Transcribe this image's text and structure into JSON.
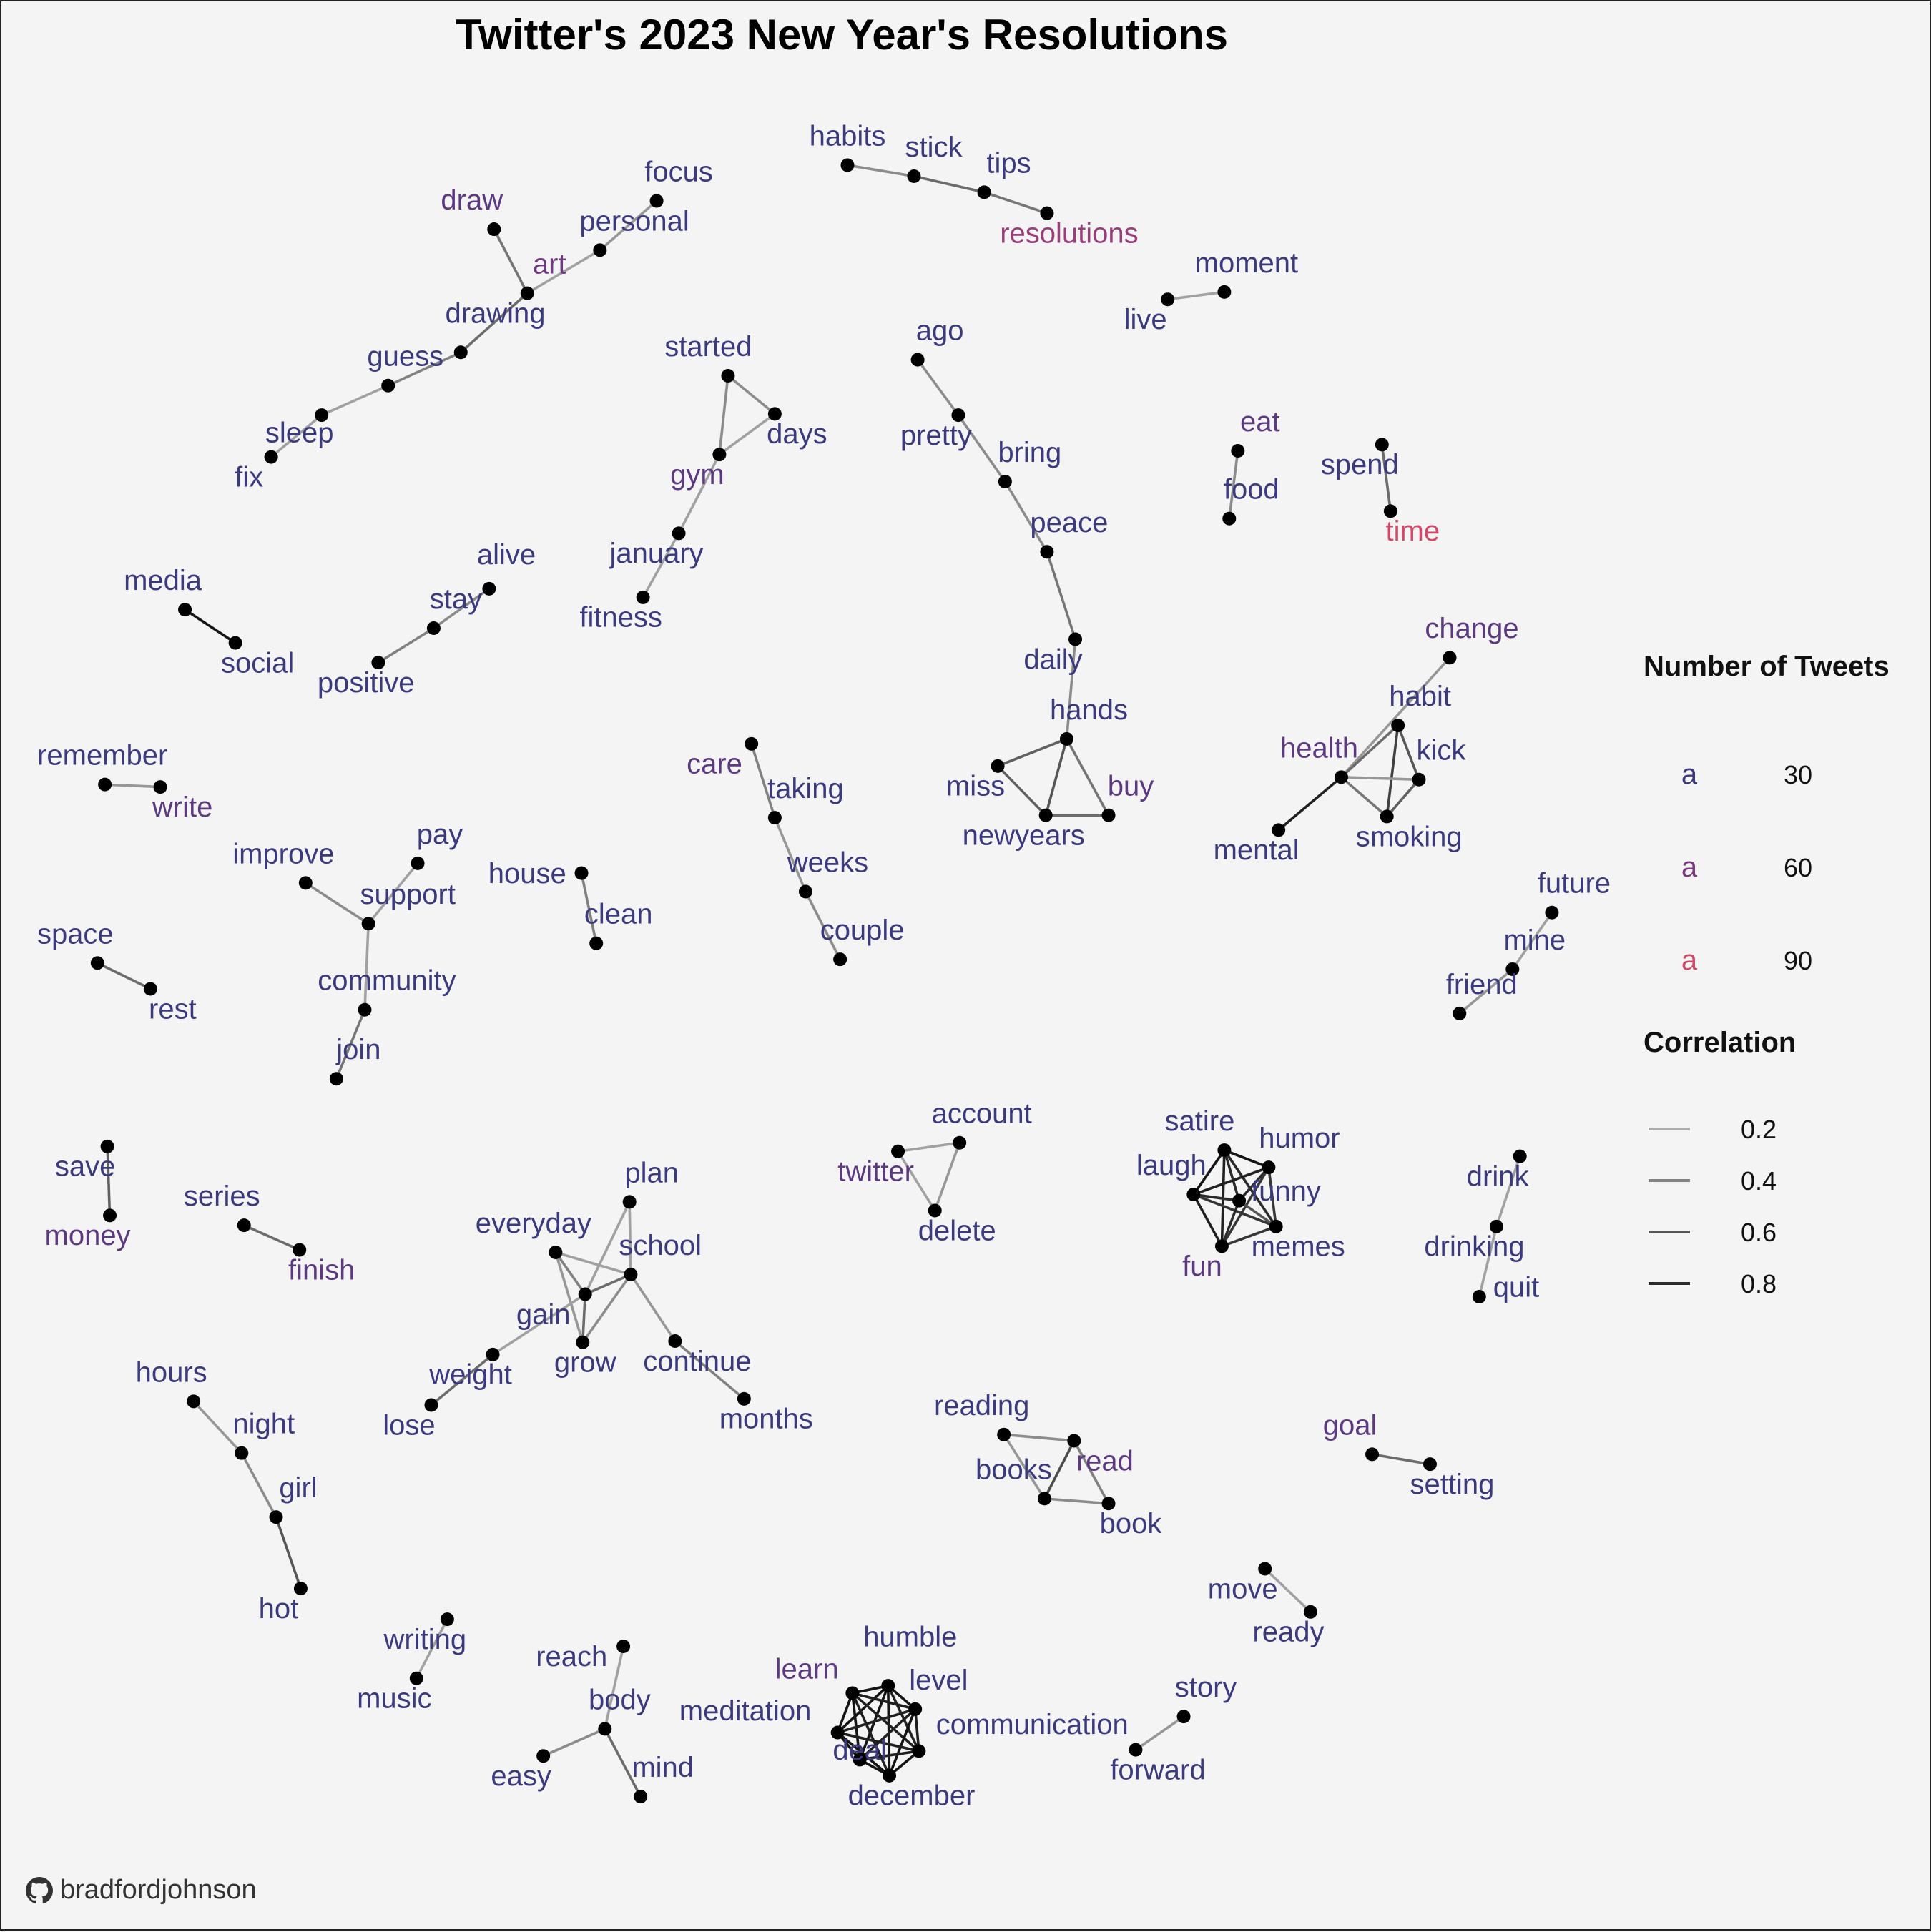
{
  "title": "Twitter's 2023 New Year's Resolutions",
  "credit": "bradfordjohnson",
  "legend": {
    "size_title": "Number of Tweets",
    "size_entries": [
      {
        "glyph": "a",
        "value": "30"
      },
      {
        "glyph": "a",
        "value": "60"
      },
      {
        "glyph": "a",
        "value": "90"
      }
    ],
    "corr_title": "Correlation",
    "corr_entries": [
      "0.2",
      "0.4",
      "0.6",
      "0.8"
    ]
  },
  "colors": {
    "background": "#f4f4f4",
    "node": "#000000",
    "label_low": "#3b3a7d",
    "label_mid": "#7a3a80",
    "label_high": "#d0486a"
  },
  "nodes": [
    {
      "w": "habits",
      "tw": 30
    },
    {
      "w": "stick",
      "tw": 30
    },
    {
      "w": "tips",
      "tw": 30
    },
    {
      "w": "resolutions",
      "tw": 70
    },
    {
      "w": "focus",
      "tw": 30
    },
    {
      "w": "personal",
      "tw": 30
    },
    {
      "w": "draw",
      "tw": 45
    },
    {
      "w": "art",
      "tw": 55
    },
    {
      "w": "drawing",
      "tw": 30
    },
    {
      "w": "guess",
      "tw": 30
    },
    {
      "w": "sleep",
      "tw": 30
    },
    {
      "w": "fix",
      "tw": 30
    },
    {
      "w": "moment",
      "tw": 30
    },
    {
      "w": "live",
      "tw": 30
    },
    {
      "w": "started",
      "tw": 30
    },
    {
      "w": "days",
      "tw": 30
    },
    {
      "w": "gym",
      "tw": 45
    },
    {
      "w": "january",
      "tw": 30
    },
    {
      "w": "fitness",
      "tw": 30
    },
    {
      "w": "ago",
      "tw": 30
    },
    {
      "w": "pretty",
      "tw": 30
    },
    {
      "w": "bring",
      "tw": 30
    },
    {
      "w": "peace",
      "tw": 30
    },
    {
      "w": "daily",
      "tw": 30
    },
    {
      "w": "hands",
      "tw": 30
    },
    {
      "w": "miss",
      "tw": 30
    },
    {
      "w": "buy",
      "tw": 45
    },
    {
      "w": "newyears",
      "tw": 30
    },
    {
      "w": "eat",
      "tw": 45
    },
    {
      "w": "food",
      "tw": 30
    },
    {
      "w": "spend",
      "tw": 30
    },
    {
      "w": "time",
      "tw": 90
    },
    {
      "w": "media",
      "tw": 30
    },
    {
      "w": "social",
      "tw": 30
    },
    {
      "w": "alive",
      "tw": 30
    },
    {
      "w": "stay",
      "tw": 30
    },
    {
      "w": "positive",
      "tw": 30
    },
    {
      "w": "change",
      "tw": 45
    },
    {
      "w": "habit",
      "tw": 30
    },
    {
      "w": "health",
      "tw": 45
    },
    {
      "w": "kick",
      "tw": 30
    },
    {
      "w": "mental",
      "tw": 30
    },
    {
      "w": "smoking",
      "tw": 30
    },
    {
      "w": "remember",
      "tw": 30
    },
    {
      "w": "write",
      "tw": 45
    },
    {
      "w": "improve",
      "tw": 30
    },
    {
      "w": "pay",
      "tw": 30
    },
    {
      "w": "support",
      "tw": 30
    },
    {
      "w": "community",
      "tw": 30
    },
    {
      "w": "join",
      "tw": 30
    },
    {
      "w": "house",
      "tw": 30
    },
    {
      "w": "clean",
      "tw": 30
    },
    {
      "w": "care",
      "tw": 45
    },
    {
      "w": "taking",
      "tw": 30
    },
    {
      "w": "weeks",
      "tw": 30
    },
    {
      "w": "couple",
      "tw": 30
    },
    {
      "w": "future",
      "tw": 30
    },
    {
      "w": "mine",
      "tw": 30
    },
    {
      "w": "friend",
      "tw": 30
    },
    {
      "w": "space",
      "tw": 30
    },
    {
      "w": "rest",
      "tw": 30
    },
    {
      "w": "account",
      "tw": 30
    },
    {
      "w": "twitter",
      "tw": 45
    },
    {
      "w": "delete",
      "tw": 30
    },
    {
      "w": "satire",
      "tw": 30
    },
    {
      "w": "humor",
      "tw": 30
    },
    {
      "w": "laugh",
      "tw": 30
    },
    {
      "w": "funny",
      "tw": 30
    },
    {
      "w": "fun",
      "tw": 45
    },
    {
      "w": "memes",
      "tw": 30
    },
    {
      "w": "drink",
      "tw": 30
    },
    {
      "w": "drinking",
      "tw": 30
    },
    {
      "w": "quit",
      "tw": 30
    },
    {
      "w": "save",
      "tw": 30
    },
    {
      "w": "money",
      "tw": 45
    },
    {
      "w": "series",
      "tw": 30
    },
    {
      "w": "finish",
      "tw": 45
    },
    {
      "w": "plan",
      "tw": 30
    },
    {
      "w": "everyday",
      "tw": 30
    },
    {
      "w": "school",
      "tw": 30
    },
    {
      "w": "gain",
      "tw": 30
    },
    {
      "w": "grow",
      "tw": 30
    },
    {
      "w": "continue",
      "tw": 30
    },
    {
      "w": "weight",
      "tw": 30
    },
    {
      "w": "lose",
      "tw": 30
    },
    {
      "w": "months",
      "tw": 30
    },
    {
      "w": "hours",
      "tw": 30
    },
    {
      "w": "night",
      "tw": 30
    },
    {
      "w": "girl",
      "tw": 30
    },
    {
      "w": "hot",
      "tw": 30
    },
    {
      "w": "reading",
      "tw": 30
    },
    {
      "w": "read",
      "tw": 45
    },
    {
      "w": "books",
      "tw": 30
    },
    {
      "w": "book",
      "tw": 30
    },
    {
      "w": "goal",
      "tw": 45
    },
    {
      "w": "setting",
      "tw": 30
    },
    {
      "w": "move",
      "tw": 30
    },
    {
      "w": "ready",
      "tw": 30
    },
    {
      "w": "writing",
      "tw": 30
    },
    {
      "w": "music",
      "tw": 30
    },
    {
      "w": "reach",
      "tw": 30
    },
    {
      "w": "body",
      "tw": 30
    },
    {
      "w": "easy",
      "tw": 30
    },
    {
      "w": "mind",
      "tw": 30
    },
    {
      "w": "humble",
      "tw": 30
    },
    {
      "w": "learn",
      "tw": 45
    },
    {
      "w": "level",
      "tw": 30
    },
    {
      "w": "meditation",
      "tw": 30
    },
    {
      "w": "communication",
      "tw": 30
    },
    {
      "w": "deal",
      "tw": 30
    },
    {
      "w": "december",
      "tw": 30
    },
    {
      "w": "story",
      "tw": 30
    },
    {
      "w": "forward",
      "tw": 30
    }
  ],
  "edges": [
    [
      "habits",
      "stick",
      0.35
    ],
    [
      "stick",
      "tips",
      0.5
    ],
    [
      "tips",
      "resolutions",
      0.45
    ],
    [
      "focus",
      "personal",
      0.3
    ],
    [
      "personal",
      "art",
      0.25
    ],
    [
      "draw",
      "art",
      0.45
    ],
    [
      "art",
      "drawing",
      0.5
    ],
    [
      "drawing",
      "guess",
      0.4
    ],
    [
      "guess",
      "sleep",
      0.25
    ],
    [
      "sleep",
      "fix",
      0.25
    ],
    [
      "live",
      "moment",
      0.25
    ],
    [
      "started",
      "days",
      0.35
    ],
    [
      "started",
      "gym",
      0.35
    ],
    [
      "days",
      "gym",
      0.25
    ],
    [
      "gym",
      "january",
      0.25
    ],
    [
      "january",
      "fitness",
      0.25
    ],
    [
      "ago",
      "pretty",
      0.35
    ],
    [
      "pretty",
      "bring",
      0.35
    ],
    [
      "bring",
      "peace",
      0.35
    ],
    [
      "peace",
      "daily",
      0.45
    ],
    [
      "daily",
      "hands",
      0.35
    ],
    [
      "hands",
      "miss",
      0.55
    ],
    [
      "hands",
      "newyears",
      0.6
    ],
    [
      "hands",
      "buy",
      0.45
    ],
    [
      "miss",
      "newyears",
      0.55
    ],
    [
      "newyears",
      "buy",
      0.5
    ],
    [
      "eat",
      "food",
      0.35
    ],
    [
      "spend",
      "time",
      0.5
    ],
    [
      "media",
      "social",
      0.9
    ],
    [
      "alive",
      "stay",
      0.35
    ],
    [
      "stay",
      "positive",
      0.4
    ],
    [
      "change",
      "health",
      0.3
    ],
    [
      "habit",
      "health",
      0.5
    ],
    [
      "habit",
      "kick",
      0.6
    ],
    [
      "habit",
      "smoking",
      0.7
    ],
    [
      "health",
      "kick",
      0.3
    ],
    [
      "health",
      "smoking",
      0.45
    ],
    [
      "kick",
      "smoking",
      0.55
    ],
    [
      "health",
      "mental",
      0.85
    ],
    [
      "remember",
      "write",
      0.3
    ],
    [
      "improve",
      "support",
      0.35
    ],
    [
      "pay",
      "support",
      0.25
    ],
    [
      "support",
      "community",
      0.25
    ],
    [
      "community",
      "join",
      0.45
    ],
    [
      "house",
      "clean",
      0.4
    ],
    [
      "care",
      "taking",
      0.4
    ],
    [
      "taking",
      "weeks",
      0.3
    ],
    [
      "weeks",
      "couple",
      0.35
    ],
    [
      "future",
      "mine",
      0.25
    ],
    [
      "mine",
      "friend",
      0.3
    ],
    [
      "space",
      "rest",
      0.5
    ],
    [
      "twitter",
      "account",
      0.25
    ],
    [
      "account",
      "delete",
      0.3
    ],
    [
      "twitter",
      "delete",
      0.25
    ],
    [
      "satire",
      "humor",
      0.9
    ],
    [
      "satire",
      "laugh",
      0.9
    ],
    [
      "satire",
      "funny",
      0.8
    ],
    [
      "satire",
      "fun",
      0.85
    ],
    [
      "satire",
      "memes",
      0.8
    ],
    [
      "humor",
      "laugh",
      0.85
    ],
    [
      "humor",
      "funny",
      0.8
    ],
    [
      "humor",
      "fun",
      0.75
    ],
    [
      "humor",
      "memes",
      0.75
    ],
    [
      "laugh",
      "funny",
      0.8
    ],
    [
      "laugh",
      "fun",
      0.85
    ],
    [
      "laugh",
      "memes",
      0.75
    ],
    [
      "funny",
      "fun",
      0.8
    ],
    [
      "funny",
      "memes",
      0.6
    ],
    [
      "fun",
      "memes",
      0.75
    ],
    [
      "drink",
      "drinking",
      0.25
    ],
    [
      "drinking",
      "quit",
      0.25
    ],
    [
      "save",
      "money",
      0.55
    ],
    [
      "series",
      "finish",
      0.5
    ],
    [
      "plan",
      "school",
      0.25
    ],
    [
      "plan",
      "gain",
      0.25
    ],
    [
      "everyday",
      "school",
      0.25
    ],
    [
      "everyday",
      "gain",
      0.4
    ],
    [
      "everyday",
      "grow",
      0.3
    ],
    [
      "school",
      "gain",
      0.5
    ],
    [
      "school",
      "grow",
      0.35
    ],
    [
      "school",
      "continue",
      0.3
    ],
    [
      "gain",
      "grow",
      0.5
    ],
    [
      "gain",
      "weight",
      0.25
    ],
    [
      "weight",
      "lose",
      0.5
    ],
    [
      "continue",
      "months",
      0.4
    ],
    [
      "hours",
      "night",
      0.3
    ],
    [
      "night",
      "girl",
      0.35
    ],
    [
      "girl",
      "hot",
      0.6
    ],
    [
      "reading",
      "read",
      0.35
    ],
    [
      "reading",
      "books",
      0.3
    ],
    [
      "read",
      "books",
      0.65
    ],
    [
      "read",
      "book",
      0.4
    ],
    [
      "books",
      "book",
      0.35
    ],
    [
      "goal",
      "setting",
      0.5
    ],
    [
      "move",
      "ready",
      0.25
    ],
    [
      "writing",
      "music",
      0.25
    ],
    [
      "reach",
      "body",
      0.25
    ],
    [
      "body",
      "easy",
      0.35
    ],
    [
      "body",
      "mind",
      0.5
    ],
    [
      "humble",
      "learn",
      0.9
    ],
    [
      "humble",
      "level",
      0.9
    ],
    [
      "humble",
      "meditation",
      0.9
    ],
    [
      "humble",
      "communication",
      0.85
    ],
    [
      "humble",
      "deal",
      0.9
    ],
    [
      "humble",
      "december",
      0.9
    ],
    [
      "learn",
      "level",
      0.85
    ],
    [
      "learn",
      "meditation",
      0.9
    ],
    [
      "learn",
      "communication",
      0.85
    ],
    [
      "learn",
      "deal",
      0.9
    ],
    [
      "learn",
      "december",
      0.85
    ],
    [
      "level",
      "meditation",
      0.85
    ],
    [
      "level",
      "communication",
      0.85
    ],
    [
      "level",
      "deal",
      0.85
    ],
    [
      "level",
      "december",
      0.9
    ],
    [
      "meditation",
      "communication",
      0.85
    ],
    [
      "meditation",
      "deal",
      0.9
    ],
    [
      "meditation",
      "december",
      0.9
    ],
    [
      "communication",
      "deal",
      0.85
    ],
    [
      "communication",
      "december",
      0.9
    ],
    [
      "deal",
      "december",
      0.9
    ],
    [
      "story",
      "forward",
      0.3
    ]
  ]
}
